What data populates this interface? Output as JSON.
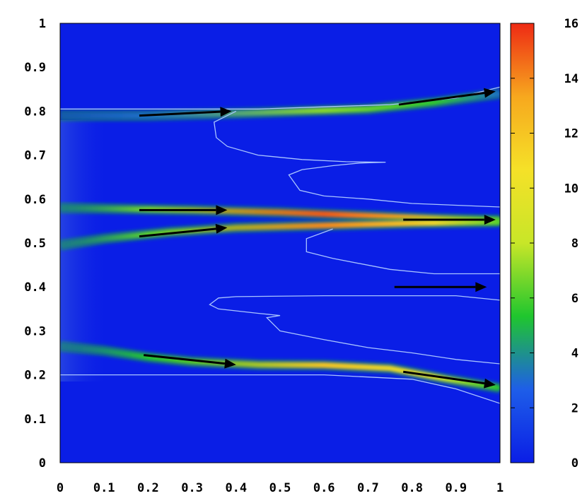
{
  "chart_data": {
    "type": "heatmap",
    "title": "",
    "xlabel": "",
    "ylabel": "",
    "xlim": [
      0,
      1
    ],
    "ylim": [
      0,
      1
    ],
    "x_ticks": [
      "0",
      "0.1",
      "0.2",
      "0.3",
      "0.4",
      "0.5",
      "0.6",
      "0.7",
      "0.8",
      "0.9",
      "1"
    ],
    "y_ticks": [
      "0",
      "0.1",
      "0.2",
      "0.3",
      "0.4",
      "0.5",
      "0.6",
      "0.7",
      "0.8",
      "0.9",
      "1"
    ],
    "colorbar": {
      "range": [
        0,
        16
      ],
      "ticks": [
        "0",
        "2",
        "4",
        "6",
        "8",
        "10",
        "12",
        "14",
        "16"
      ],
      "colors": [
        "#0a1ee6",
        "#1e5ee8",
        "#1fc62e",
        "#c8e628",
        "#f5e128",
        "#f7a81e",
        "#ee2a14"
      ]
    },
    "background_color": "#0a1ee6",
    "beams": [
      {
        "points": [
          [
            0,
            0.79
          ],
          [
            0.2,
            0.79
          ],
          [
            0.4,
            0.795
          ],
          [
            0.55,
            0.8
          ],
          [
            0.7,
            0.805
          ],
          [
            0.85,
            0.82
          ],
          [
            1,
            0.84
          ]
        ],
        "peak": 7
      },
      {
        "points": [
          [
            0,
            0.58
          ],
          [
            0.3,
            0.575
          ],
          [
            0.5,
            0.57
          ],
          [
            0.7,
            0.562
          ],
          [
            0.85,
            0.556
          ],
          [
            1,
            0.552
          ]
        ],
        "peak": 15
      },
      {
        "points": [
          [
            0,
            0.495
          ],
          [
            0.1,
            0.51
          ],
          [
            0.25,
            0.525
          ],
          [
            0.4,
            0.535
          ],
          [
            0.6,
            0.54
          ],
          [
            0.8,
            0.545
          ],
          [
            1,
            0.548
          ]
        ],
        "peak": 14
      },
      {
        "points": [
          [
            0,
            0.265
          ],
          [
            0.1,
            0.255
          ],
          [
            0.2,
            0.24
          ],
          [
            0.3,
            0.23
          ],
          [
            0.45,
            0.223
          ],
          [
            0.6,
            0.222
          ],
          [
            0.75,
            0.215
          ],
          [
            0.88,
            0.19
          ],
          [
            1,
            0.17
          ]
        ],
        "peak": 12
      }
    ],
    "contours": [
      [
        [
          0,
          0.805
        ],
        [
          0.25,
          0.805
        ],
        [
          0.45,
          0.805
        ],
        [
          0.6,
          0.81
        ],
        [
          0.75,
          0.815
        ],
        [
          0.9,
          0.83
        ],
        [
          1,
          0.855
        ]
      ],
      [
        [
          0.4,
          0.8
        ],
        [
          0.35,
          0.775
        ],
        [
          0.355,
          0.74
        ],
        [
          0.38,
          0.72
        ],
        [
          0.45,
          0.7
        ],
        [
          0.55,
          0.69
        ],
        [
          0.65,
          0.685
        ],
        [
          0.74,
          0.684
        ],
        [
          0.68,
          0.682
        ],
        [
          0.62,
          0.676
        ],
        [
          0.55,
          0.667
        ],
        [
          0.52,
          0.655
        ],
        [
          0.545,
          0.62
        ],
        [
          0.6,
          0.607
        ],
        [
          0.7,
          0.6
        ],
        [
          0.8,
          0.59
        ],
        [
          1,
          0.582
        ]
      ],
      [
        [
          0.62,
          0.532
        ],
        [
          0.56,
          0.51
        ],
        [
          0.56,
          0.48
        ],
        [
          0.62,
          0.465
        ],
        [
          0.75,
          0.44
        ],
        [
          0.85,
          0.43
        ],
        [
          1,
          0.43
        ]
      ],
      [
        [
          1,
          0.37
        ],
        [
          0.9,
          0.38
        ],
        [
          0.8,
          0.38
        ],
        [
          0.6,
          0.38
        ],
        [
          0.4,
          0.378
        ],
        [
          0.36,
          0.375
        ],
        [
          0.34,
          0.36
        ],
        [
          0.36,
          0.35
        ],
        [
          0.45,
          0.34
        ],
        [
          0.5,
          0.335
        ],
        [
          0.47,
          0.33
        ],
        [
          0.5,
          0.3
        ],
        [
          0.6,
          0.28
        ],
        [
          0.7,
          0.262
        ],
        [
          0.8,
          0.25
        ],
        [
          0.9,
          0.235
        ],
        [
          1,
          0.225
        ]
      ],
      [
        [
          0,
          0.2
        ],
        [
          0.3,
          0.2
        ],
        [
          0.6,
          0.2
        ],
        [
          0.8,
          0.19
        ],
        [
          0.9,
          0.168
        ],
        [
          1,
          0.135
        ]
      ]
    ],
    "arrows": [
      [
        [
          0.18,
          0.79
        ],
        [
          0.39,
          0.8
        ]
      ],
      [
        [
          0.77,
          0.815
        ],
        [
          0.99,
          0.845
        ]
      ],
      [
        [
          0.18,
          0.575
        ],
        [
          0.38,
          0.575
        ]
      ],
      [
        [
          0.18,
          0.515
        ],
        [
          0.38,
          0.535
        ]
      ],
      [
        [
          0.78,
          0.553
        ],
        [
          0.99,
          0.553
        ]
      ],
      [
        [
          0.76,
          0.4
        ],
        [
          0.97,
          0.4
        ]
      ],
      [
        [
          0.19,
          0.245
        ],
        [
          0.4,
          0.223
        ]
      ],
      [
        [
          0.78,
          0.207
        ],
        [
          0.99,
          0.177
        ]
      ]
    ]
  }
}
